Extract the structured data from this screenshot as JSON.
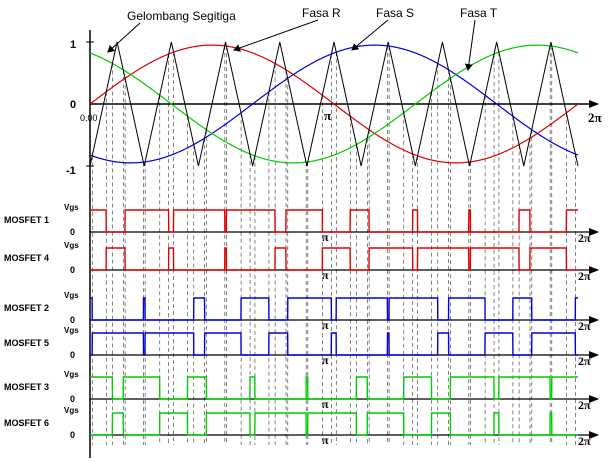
{
  "annotations": {
    "triangle": "Gelombang Segitiga",
    "phase_r": "Fasa R",
    "phase_s": "Fasa S",
    "phase_t": "Fasa T"
  },
  "top_axis": {
    "y_ticks": [
      "1",
      "0",
      "-1"
    ],
    "origin_label": "0.00",
    "pi_label": "π",
    "two_pi_label": "2π"
  },
  "colors": {
    "triangle": "#000000",
    "phase_r": "#e00000",
    "phase_s": "#0000e0",
    "phase_t": "#00cc00",
    "mosfet_1_4": "#e00000",
    "mosfet_2_5": "#0000e0",
    "mosfet_3_6": "#00cc00"
  },
  "mosfets": [
    {
      "label": "MOSFET 1",
      "vgs": "Vgs",
      "zero": "0",
      "pi": "π",
      "two_pi": "2π",
      "phase": "R",
      "inverted": false
    },
    {
      "label": "MOSFET 4",
      "vgs": "Vgs",
      "zero": "0",
      "pi": "π",
      "two_pi": "2π",
      "phase": "R",
      "inverted": true
    },
    {
      "label": "MOSFET 2",
      "vgs": "Vgs",
      "zero": "0",
      "pi": "π",
      "two_pi": "2π",
      "phase": "S",
      "inverted": false
    },
    {
      "label": "MOSFET 5",
      "vgs": "Vgs",
      "zero": "0",
      "pi": "π",
      "two_pi": "2π",
      "phase": "S",
      "inverted": true
    },
    {
      "label": "MOSFET 3",
      "vgs": "Vgs",
      "zero": "0",
      "pi": "π",
      "two_pi": "2π",
      "phase": "T",
      "inverted": false
    },
    {
      "label": "MOSFET 6",
      "vgs": "Vgs",
      "zero": "0",
      "pi": "π",
      "two_pi": "2π",
      "phase": "T",
      "inverted": true
    }
  ]
}
